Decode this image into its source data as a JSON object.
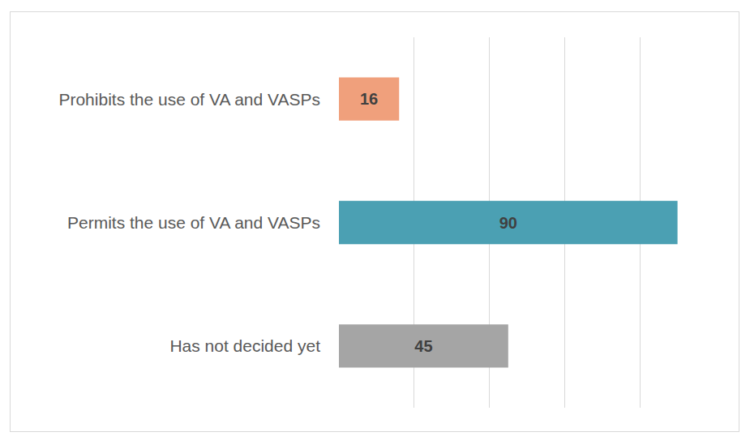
{
  "chart_data": {
    "type": "bar",
    "orientation": "horizontal",
    "categories": [
      "Prohibits the use of VA and VASPs",
      "Permits the use of VA and VASPs",
      "Has not decided yet"
    ],
    "values": [
      16,
      90,
      45
    ],
    "colors": [
      "#f0a07c",
      "#4ba0b3",
      "#a5a5a5"
    ],
    "xlim": [
      0,
      100
    ],
    "xticks": [
      0,
      20,
      40,
      60,
      80,
      100
    ],
    "grid": true,
    "data_labels": true,
    "tick_labels": "y"
  }
}
